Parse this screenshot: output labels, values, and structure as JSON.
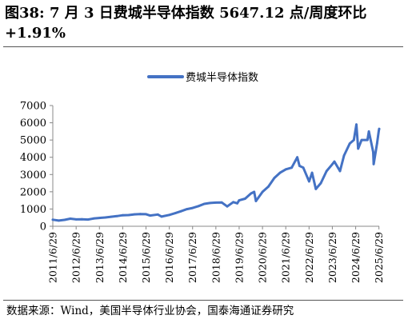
{
  "figure": {
    "title_line1": "图38:  7 月 3 日费城半导体指数 5647.12 点/周度环比",
    "title_line2": "+1.91%",
    "source": "数据来源：Wind，美国半导体行业协会，国泰海通证券研究"
  },
  "colors": {
    "series": "#4472C4",
    "axis": "#888888"
  },
  "chart_data": {
    "type": "line",
    "title": "",
    "xlabel": "",
    "ylabel": "",
    "ylim": [
      0,
      7000
    ],
    "yticks": [
      0,
      1000,
      2000,
      3000,
      4000,
      5000,
      6000,
      7000
    ],
    "xlim": [
      "2011/6/29",
      "2025/7/3"
    ],
    "xticks": [
      "2011/6/29",
      "2012/6/29",
      "2013/6/29",
      "2014/6/29",
      "2015/6/29",
      "2016/6/29",
      "2017/6/29",
      "2018/6/29",
      "2019/6/29",
      "2020/6/29",
      "2021/6/29",
      "2022/6/29",
      "2023/6/29",
      "2024/6/29",
      "2025/6/29"
    ],
    "grid": false,
    "legend": "top-center",
    "series": [
      {
        "name": "费城半导体指数",
        "points": [
          [
            "2011/6/29",
            380
          ],
          [
            "2011/9/30",
            330
          ],
          [
            "2011/12/30",
            370
          ],
          [
            "2012/3/30",
            440
          ],
          [
            "2012/6/29",
            400
          ],
          [
            "2012/9/28",
            410
          ],
          [
            "2012/12/31",
            390
          ],
          [
            "2013/3/28",
            450
          ],
          [
            "2013/6/28",
            480
          ],
          [
            "2013/9/30",
            510
          ],
          [
            "2013/12/31",
            550
          ],
          [
            "2014/3/31",
            590
          ],
          [
            "2014/6/30",
            640
          ],
          [
            "2014/9/30",
            650
          ],
          [
            "2014/12/31",
            690
          ],
          [
            "2015/3/31",
            710
          ],
          [
            "2015/6/30",
            700
          ],
          [
            "2015/8/31",
            620
          ],
          [
            "2015/12/31",
            680
          ],
          [
            "2016/2/29",
            560
          ],
          [
            "2016/6/30",
            660
          ],
          [
            "2016/9/30",
            760
          ],
          [
            "2016/12/30",
            870
          ],
          [
            "2017/3/31",
            990
          ],
          [
            "2017/6/30",
            1060
          ],
          [
            "2017/9/29",
            1170
          ],
          [
            "2017/12/29",
            1300
          ],
          [
            "2018/3/29",
            1350
          ],
          [
            "2018/6/29",
            1370
          ],
          [
            "2018/9/28",
            1380
          ],
          [
            "2018/12/24",
            1150
          ],
          [
            "2019/3/29",
            1400
          ],
          [
            "2019/5/31",
            1330
          ],
          [
            "2019/6/28",
            1500
          ],
          [
            "2019/9/30",
            1600
          ],
          [
            "2019/12/31",
            1900
          ],
          [
            "2020/2/19",
            2000
          ],
          [
            "2020/3/18",
            1460
          ],
          [
            "2020/6/30",
            2000
          ],
          [
            "2020/9/30",
            2300
          ],
          [
            "2020/12/31",
            2800
          ],
          [
            "2021/3/31",
            3100
          ],
          [
            "2021/6/30",
            3300
          ],
          [
            "2021/9/30",
            3400
          ],
          [
            "2021/12/27",
            4000
          ],
          [
            "2022/1/31",
            3500
          ],
          [
            "2022/3/31",
            3400
          ],
          [
            "2022/6/30",
            2600
          ],
          [
            "2022/8/15",
            3100
          ],
          [
            "2022/10/13",
            2160
          ],
          [
            "2022/12/30",
            2500
          ],
          [
            "2023/3/31",
            3200
          ],
          [
            "2023/6/30",
            3600
          ],
          [
            "2023/7/31",
            3750
          ],
          [
            "2023/10/27",
            3200
          ],
          [
            "2023/12/29",
            4100
          ],
          [
            "2024/3/28",
            4800
          ],
          [
            "2024/5/31",
            5000
          ],
          [
            "2024/7/10",
            5900
          ],
          [
            "2024/8/7",
            4500
          ],
          [
            "2024/9/30",
            5000
          ],
          [
            "2024/11/29",
            5000
          ],
          [
            "2024/12/31",
            5000
          ],
          [
            "2025/1/22",
            5500
          ],
          [
            "2025/3/31",
            4300
          ],
          [
            "2025/4/8",
            3600
          ],
          [
            "2025/5/30",
            4800
          ],
          [
            "2025/6/27",
            5540
          ],
          [
            "2025/7/3",
            5647.12
          ]
        ]
      }
    ]
  }
}
